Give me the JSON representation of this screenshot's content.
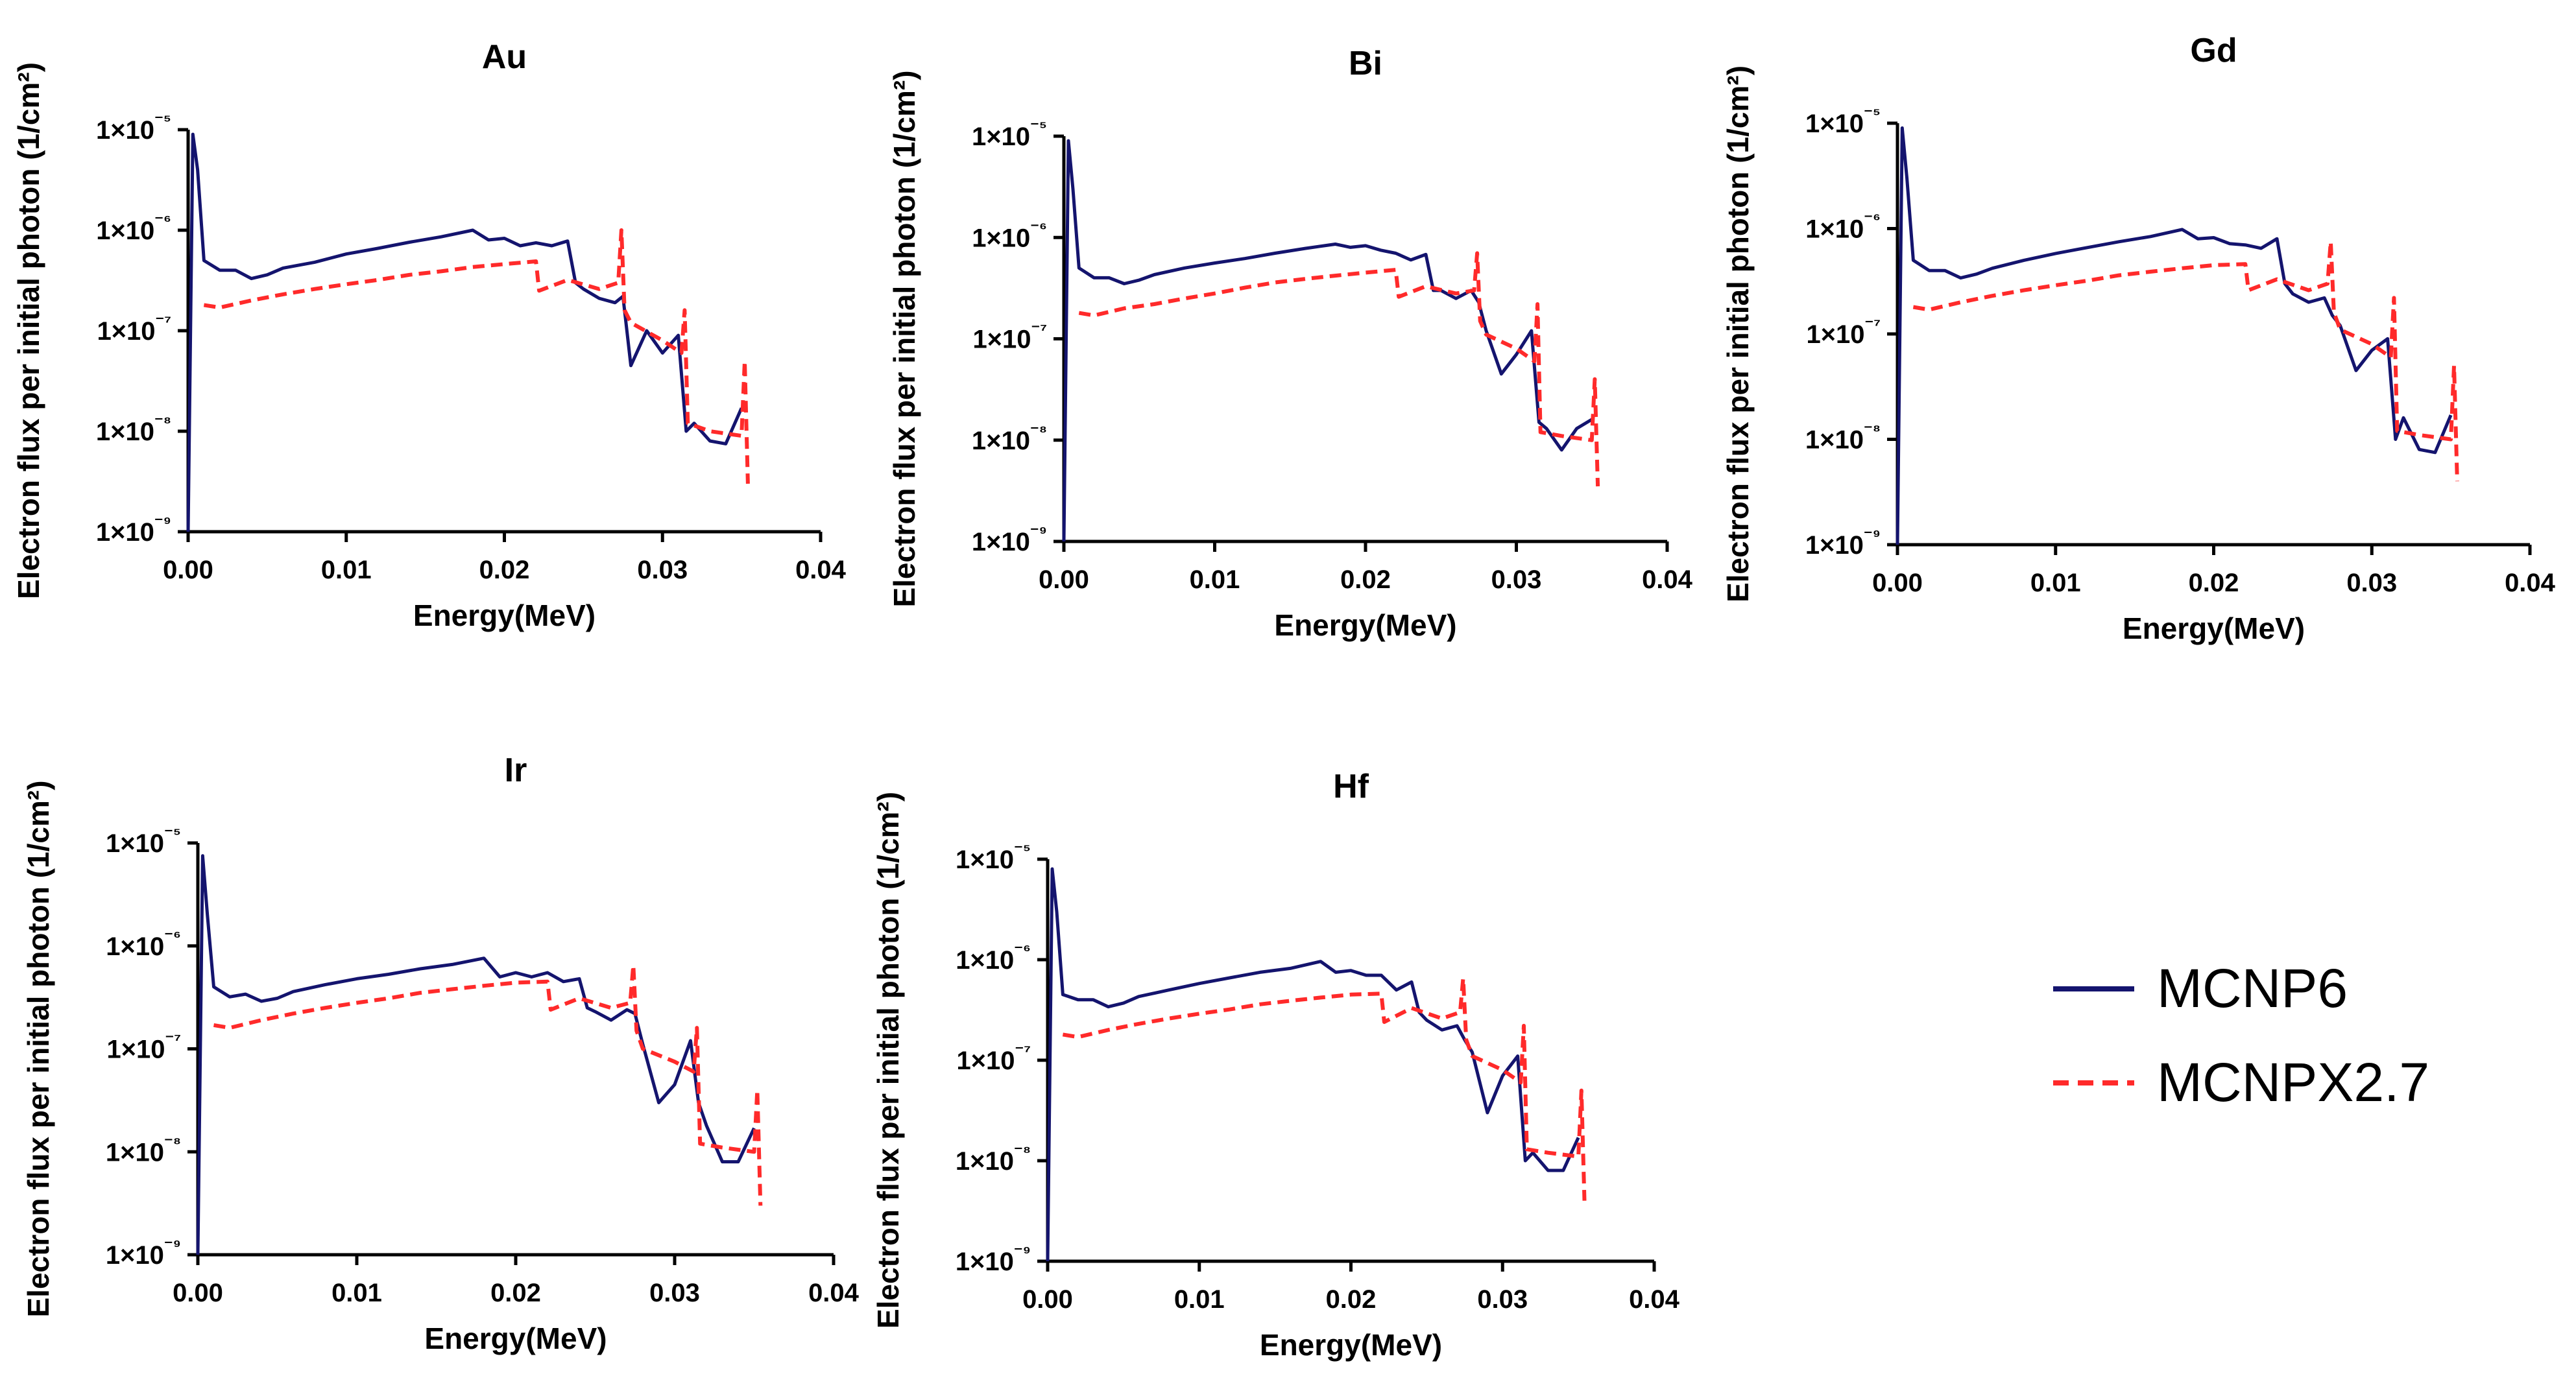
{
  "colors": {
    "mcnp6": "#14146e",
    "mcnpx": "#ff2a2a"
  },
  "legend": {
    "items": [
      {
        "name": "MCNP6",
        "color": "#14146e",
        "style": "solid"
      },
      {
        "name": "MCNPX2.7",
        "color": "#ff2a2a",
        "style": "dashed"
      }
    ]
  },
  "chart_data": [
    {
      "type": "line",
      "title": "Au",
      "xlabel": "Energy(MeV)",
      "ylabel": "Electron flux per initial photon (1/cm²)",
      "xlim": [
        0,
        0.04
      ],
      "ylim_log10": [
        -9,
        -5
      ],
      "xticks": [
        "0.00",
        "0.01",
        "0.02",
        "0.03",
        "0.04"
      ],
      "yticks": [
        "1×10⁻⁹",
        "1×10⁻⁸",
        "1×10⁻⁷",
        "1×10⁻⁶",
        "1×10⁻⁵"
      ],
      "series": [
        {
          "name": "MCNP6",
          "x": [
            0,
            0.0003,
            0.0006,
            0.001,
            0.002,
            0.003,
            0.004,
            0.005,
            0.006,
            0.008,
            0.01,
            0.012,
            0.014,
            0.016,
            0.018,
            0.019,
            0.02,
            0.021,
            0.022,
            0.023,
            0.024,
            0.0245,
            0.025,
            0.026,
            0.027,
            0.0275,
            0.028,
            0.029,
            0.03,
            0.031,
            0.0315,
            0.032,
            0.033,
            0.034,
            0.035
          ],
          "y": [
            1e-09,
            9e-06,
            4e-06,
            5e-07,
            4e-07,
            4e-07,
            3.3e-07,
            3.6e-07,
            4.2e-07,
            4.8e-07,
            5.8e-07,
            6.6e-07,
            7.6e-07,
            8.6e-07,
            1e-06,
            8e-07,
            8.3e-07,
            7e-07,
            7.5e-07,
            7e-07,
            7.8e-07,
            3e-07,
            2.6e-07,
            2.1e-07,
            1.9e-07,
            2.2e-07,
            4.5e-08,
            1e-07,
            6e-08,
            9e-08,
            1e-08,
            1.2e-08,
            8e-09,
            7.5e-09,
            1.7e-08
          ]
        },
        {
          "name": "MCNPX2.7",
          "x": [
            0.001,
            0.002,
            0.004,
            0.006,
            0.008,
            0.01,
            0.012,
            0.014,
            0.016,
            0.018,
            0.02,
            0.022,
            0.0222,
            0.024,
            0.026,
            0.0272,
            0.0274,
            0.0276,
            0.028,
            0.03,
            0.0312,
            0.0314,
            0.0316,
            0.033,
            0.035,
            0.0352,
            0.0354
          ],
          "y": [
            1.8e-07,
            1.7e-07,
            2e-07,
            2.3e-07,
            2.6e-07,
            2.9e-07,
            3.2e-07,
            3.6e-07,
            3.9e-07,
            4.3e-07,
            4.6e-07,
            4.9e-07,
            2.5e-07,
            3.2e-07,
            2.6e-07,
            3e-07,
            1e-06,
            1.6e-07,
            1.2e-07,
            8e-08,
            6e-08,
            1.6e-07,
            1.2e-08,
            1e-08,
            9e-09,
            5e-08,
            3e-09
          ]
        }
      ]
    },
    {
      "type": "line",
      "title": "Bi",
      "xlabel": "Energy(MeV)",
      "ylabel": "Electron flux per initial photon (1/cm²)",
      "xlim": [
        0,
        0.04
      ],
      "ylim_log10": [
        -9,
        -5
      ],
      "xticks": [
        "0.00",
        "0.01",
        "0.02",
        "0.03",
        "0.04"
      ],
      "yticks": [
        "1×10⁻⁹",
        "1×10⁻⁸",
        "1×10⁻⁷",
        "1×10⁻⁶",
        "1×10⁻⁵"
      ],
      "series": [
        {
          "name": "MCNP6",
          "x": [
            0,
            0.0003,
            0.0006,
            0.001,
            0.002,
            0.003,
            0.004,
            0.005,
            0.006,
            0.008,
            0.01,
            0.012,
            0.014,
            0.016,
            0.018,
            0.019,
            0.02,
            0.021,
            0.022,
            0.023,
            0.024,
            0.0245,
            0.025,
            0.026,
            0.027,
            0.0275,
            0.028,
            0.029,
            0.03,
            0.031,
            0.0315,
            0.032,
            0.033,
            0.034,
            0.035
          ],
          "y": [
            1e-09,
            9e-06,
            3e-06,
            5e-07,
            4e-07,
            4e-07,
            3.5e-07,
            3.8e-07,
            4.3e-07,
            5e-07,
            5.6e-07,
            6.2e-07,
            7e-07,
            7.8e-07,
            8.6e-07,
            8e-07,
            8.3e-07,
            7.5e-07,
            7e-07,
            6e-07,
            6.8e-07,
            3e-07,
            3e-07,
            2.5e-07,
            3e-07,
            2.3e-07,
            1.2e-07,
            4.5e-08,
            7e-08,
            1.2e-07,
            1.5e-08,
            1.3e-08,
            8e-09,
            1.3e-08,
            1.6e-08
          ]
        },
        {
          "name": "MCNPX2.7",
          "x": [
            0.001,
            0.002,
            0.004,
            0.006,
            0.008,
            0.01,
            0.012,
            0.014,
            0.016,
            0.018,
            0.02,
            0.022,
            0.0222,
            0.024,
            0.026,
            0.0272,
            0.0274,
            0.0276,
            0.028,
            0.03,
            0.0312,
            0.0314,
            0.0316,
            0.033,
            0.035,
            0.0352,
            0.0354
          ],
          "y": [
            1.8e-07,
            1.7e-07,
            2e-07,
            2.2e-07,
            2.5e-07,
            2.8e-07,
            3.2e-07,
            3.6e-07,
            3.9e-07,
            4.2e-07,
            4.5e-07,
            4.8e-07,
            2.6e-07,
            3.3e-07,
            2.8e-07,
            3e-07,
            7e-07,
            1.5e-07,
            1.1e-07,
            8e-08,
            6e-08,
            2.2e-07,
            1.2e-08,
            1.1e-08,
            1e-08,
            4e-08,
            3.5e-09
          ]
        }
      ]
    },
    {
      "type": "line",
      "title": "Gd",
      "xlabel": "Energy(MeV)",
      "ylabel": "Electron flux per initial photon (1/cm²)",
      "xlim": [
        0,
        0.04
      ],
      "ylim_log10": [
        -9,
        -5
      ],
      "xticks": [
        "0.00",
        "0.01",
        "0.02",
        "0.03",
        "0.04"
      ],
      "yticks": [
        "1×10⁻⁹",
        "1×10⁻⁸",
        "1×10⁻⁷",
        "1×10⁻⁶",
        "1×10⁻⁵"
      ],
      "series": [
        {
          "name": "MCNP6",
          "x": [
            0,
            0.0003,
            0.0006,
            0.001,
            0.002,
            0.003,
            0.004,
            0.005,
            0.006,
            0.008,
            0.01,
            0.012,
            0.014,
            0.016,
            0.018,
            0.019,
            0.02,
            0.021,
            0.022,
            0.023,
            0.024,
            0.0245,
            0.025,
            0.026,
            0.027,
            0.0275,
            0.028,
            0.029,
            0.03,
            0.031,
            0.0315,
            0.032,
            0.033,
            0.034,
            0.035
          ],
          "y": [
            1e-09,
            9e-06,
            3e-06,
            5e-07,
            4e-07,
            4e-07,
            3.4e-07,
            3.7e-07,
            4.2e-07,
            5e-07,
            5.8e-07,
            6.6e-07,
            7.5e-07,
            8.4e-07,
            9.8e-07,
            8e-07,
            8.2e-07,
            7.2e-07,
            7e-07,
            6.5e-07,
            8e-07,
            3e-07,
            2.4e-07,
            2e-07,
            2.2e-07,
            1.5e-07,
            1.2e-07,
            4.5e-08,
            7e-08,
            9e-08,
            1e-08,
            1.6e-08,
            8e-09,
            7.5e-09,
            1.7e-08
          ]
        },
        {
          "name": "MCNPX2.7",
          "x": [
            0.001,
            0.002,
            0.004,
            0.006,
            0.008,
            0.01,
            0.012,
            0.014,
            0.016,
            0.018,
            0.02,
            0.022,
            0.0222,
            0.024,
            0.026,
            0.0272,
            0.0274,
            0.0276,
            0.028,
            0.03,
            0.0312,
            0.0314,
            0.0316,
            0.033,
            0.035,
            0.0352,
            0.0354
          ],
          "y": [
            1.8e-07,
            1.7e-07,
            2e-07,
            2.3e-07,
            2.6e-07,
            2.9e-07,
            3.2e-07,
            3.6e-07,
            3.9e-07,
            4.2e-07,
            4.5e-07,
            4.6e-07,
            2.6e-07,
            3.3e-07,
            2.6e-07,
            3e-07,
            7.5e-07,
            1.6e-07,
            1.1e-07,
            8e-08,
            6e-08,
            2.2e-07,
            1.2e-08,
            1.1e-08,
            1e-08,
            5e-08,
            4e-09
          ]
        }
      ]
    },
    {
      "type": "line",
      "title": "Ir",
      "xlabel": "Energy(MeV)",
      "ylabel": "Electron flux per initial photon (1/cm²)",
      "xlim": [
        0,
        0.04
      ],
      "ylim_log10": [
        -9,
        -5
      ],
      "xticks": [
        "0.00",
        "0.01",
        "0.02",
        "0.03",
        "0.04"
      ],
      "yticks": [
        "1×10⁻⁹",
        "1×10⁻⁸",
        "1×10⁻⁷",
        "1×10⁻⁶",
        "1×10⁻⁵"
      ],
      "series": [
        {
          "name": "MCNP6",
          "x": [
            0,
            0.0003,
            0.0006,
            0.001,
            0.002,
            0.003,
            0.004,
            0.005,
            0.006,
            0.008,
            0.01,
            0.012,
            0.014,
            0.016,
            0.018,
            0.019,
            0.02,
            0.021,
            0.022,
            0.023,
            0.024,
            0.0245,
            0.025,
            0.026,
            0.027,
            0.0275,
            0.028,
            0.029,
            0.03,
            0.031,
            0.0315,
            0.032,
            0.033,
            0.034,
            0.035
          ],
          "y": [
            1e-09,
            7.5e-06,
            2e-06,
            4e-07,
            3.2e-07,
            3.4e-07,
            2.9e-07,
            3.1e-07,
            3.6e-07,
            4.2e-07,
            4.8e-07,
            5.3e-07,
            6e-07,
            6.6e-07,
            7.6e-07,
            5e-07,
            5.5e-07,
            5e-07,
            5.5e-07,
            4.5e-07,
            4.8e-07,
            2.5e-07,
            2.3e-07,
            1.9e-07,
            2.4e-07,
            2.2e-07,
            1.1e-07,
            3e-08,
            4.5e-08,
            1.2e-07,
            3e-08,
            1.8e-08,
            8e-09,
            8e-09,
            1.7e-08
          ]
        },
        {
          "name": "MCNPX2.7",
          "x": [
            0.001,
            0.002,
            0.004,
            0.006,
            0.008,
            0.01,
            0.012,
            0.014,
            0.016,
            0.018,
            0.02,
            0.022,
            0.0222,
            0.024,
            0.026,
            0.0272,
            0.0274,
            0.0276,
            0.028,
            0.03,
            0.0312,
            0.0314,
            0.0316,
            0.033,
            0.035,
            0.0352,
            0.0354
          ],
          "y": [
            1.7e-07,
            1.6e-07,
            1.9e-07,
            2.2e-07,
            2.5e-07,
            2.8e-07,
            3.1e-07,
            3.5e-07,
            3.8e-07,
            4.1e-07,
            4.4e-07,
            4.5e-07,
            2.4e-07,
            3.1e-07,
            2.5e-07,
            2.8e-07,
            6.5e-07,
            1.5e-07,
            1e-07,
            7.5e-08,
            6e-08,
            1.6e-07,
            1.2e-08,
            1.1e-08,
            1e-08,
            4e-08,
            3e-09
          ]
        }
      ]
    },
    {
      "type": "line",
      "title": "Hf",
      "xlabel": "Energy(MeV)",
      "ylabel": "Electron flux per initial photon (1/cm²)",
      "xlim": [
        0,
        0.04
      ],
      "ylim_log10": [
        -9,
        -5
      ],
      "xticks": [
        "0.00",
        "0.01",
        "0.02",
        "0.03",
        "0.04"
      ],
      "yticks": [
        "1×10⁻⁹",
        "1×10⁻⁸",
        "1×10⁻⁷",
        "1×10⁻⁶",
        "1×10⁻⁵"
      ],
      "series": [
        {
          "name": "MCNP6",
          "x": [
            0,
            0.0003,
            0.0006,
            0.001,
            0.002,
            0.003,
            0.004,
            0.005,
            0.006,
            0.008,
            0.01,
            0.012,
            0.014,
            0.016,
            0.018,
            0.019,
            0.02,
            0.021,
            0.022,
            0.023,
            0.024,
            0.0245,
            0.025,
            0.026,
            0.027,
            0.0275,
            0.028,
            0.029,
            0.03,
            0.031,
            0.0315,
            0.032,
            0.033,
            0.034,
            0.035
          ],
          "y": [
            1e-09,
            8e-06,
            3e-06,
            4.5e-07,
            4e-07,
            4e-07,
            3.4e-07,
            3.7e-07,
            4.3e-07,
            5e-07,
            5.8e-07,
            6.6e-07,
            7.5e-07,
            8.2e-07,
            9.6e-07,
            7.5e-07,
            7.8e-07,
            7e-07,
            7e-07,
            5e-07,
            6e-07,
            3e-07,
            2.5e-07,
            2e-07,
            2.2e-07,
            1.6e-07,
            1.2e-07,
            3e-08,
            7e-08,
            1.1e-07,
            1e-08,
            1.2e-08,
            8e-09,
            8e-09,
            1.7e-08
          ]
        },
        {
          "name": "MCNPX2.7",
          "x": [
            0.001,
            0.002,
            0.004,
            0.006,
            0.008,
            0.01,
            0.012,
            0.014,
            0.016,
            0.018,
            0.02,
            0.022,
            0.0222,
            0.024,
            0.026,
            0.0272,
            0.0274,
            0.0276,
            0.028,
            0.03,
            0.0312,
            0.0314,
            0.0316,
            0.033,
            0.035,
            0.0352,
            0.0354
          ],
          "y": [
            1.8e-07,
            1.7e-07,
            2e-07,
            2.3e-07,
            2.6e-07,
            2.9e-07,
            3.2e-07,
            3.6e-07,
            3.9e-07,
            4.2e-07,
            4.5e-07,
            4.6e-07,
            2.4e-07,
            3.3e-07,
            2.6e-07,
            3e-07,
            6.5e-07,
            1.6e-07,
            1.1e-07,
            8e-08,
            6e-08,
            2.2e-07,
            1.3e-08,
            1.2e-08,
            1.1e-08,
            5e-08,
            4e-09
          ]
        }
      ]
    }
  ]
}
